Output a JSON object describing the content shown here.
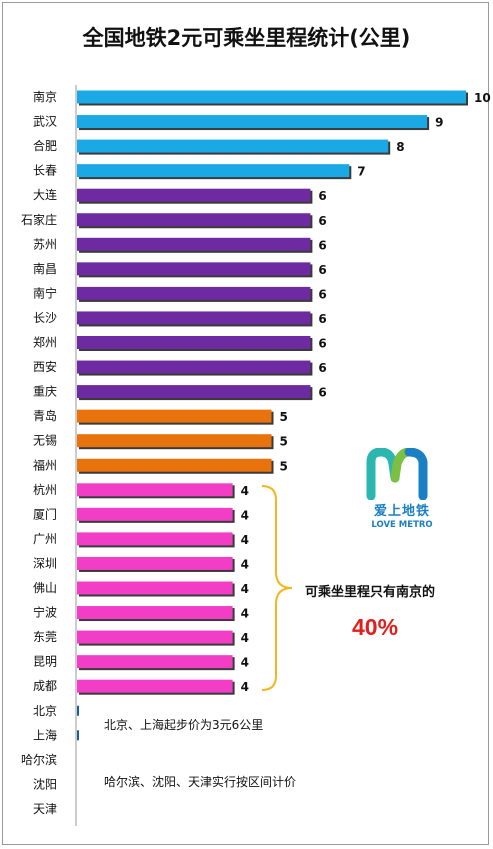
{
  "chart_data": {
    "type": "bar",
    "orientation": "horizontal",
    "title": "全国地铁2元可乘坐里程统计(公里)",
    "xlim": [
      0,
      10
    ],
    "grid": false,
    "categories": [
      "南京",
      "武汉",
      "合肥",
      "长春",
      "大连",
      "石家庄",
      "苏州",
      "南昌",
      "南宁",
      "长沙",
      "郑州",
      "西安",
      "重庆",
      "青岛",
      "无锡",
      "福州",
      "杭州",
      "厦门",
      "广州",
      "深圳",
      "佛山",
      "宁波",
      "东莞",
      "昆明",
      "成都",
      "北京",
      "上海",
      "哈尔滨",
      "沈阳",
      "天津"
    ],
    "values": [
      10,
      9,
      8,
      7,
      6,
      6,
      6,
      6,
      6,
      6,
      6,
      6,
      6,
      5,
      5,
      5,
      4,
      4,
      4,
      4,
      4,
      4,
      4,
      4,
      4,
      null,
      null,
      null,
      null,
      null
    ],
    "value_labels": [
      "10",
      "9",
      "8",
      "7",
      "6",
      "6",
      "6",
      "6",
      "6",
      "6",
      "6",
      "6",
      "6",
      "5",
      "5",
      "5",
      "4",
      "4",
      "4",
      "4",
      "4",
      "4",
      "4",
      "4",
      "4",
      "",
      "",
      "",
      "",
      ""
    ],
    "colors": {
      "10": "#1aa9e4",
      "9": "#1aa9e4",
      "8": "#1aa9e4",
      "7": "#1aa9e4",
      "6": "#6e2aa0",
      "5": "#e8730c",
      "4": "#f23ec6"
    },
    "annotations": {
      "brace_note": "可乘坐里程只有南京的",
      "percent": "40%",
      "note_beijing_shanghai": "北京、上海起步价为3元6公里",
      "note_harbin_shenyang_tianjin": "哈尔滨、沈阳、天津实行按区间计价"
    },
    "logo": {
      "text_cn": "爱上地铁",
      "text_en": "LOVE METRO"
    }
  }
}
